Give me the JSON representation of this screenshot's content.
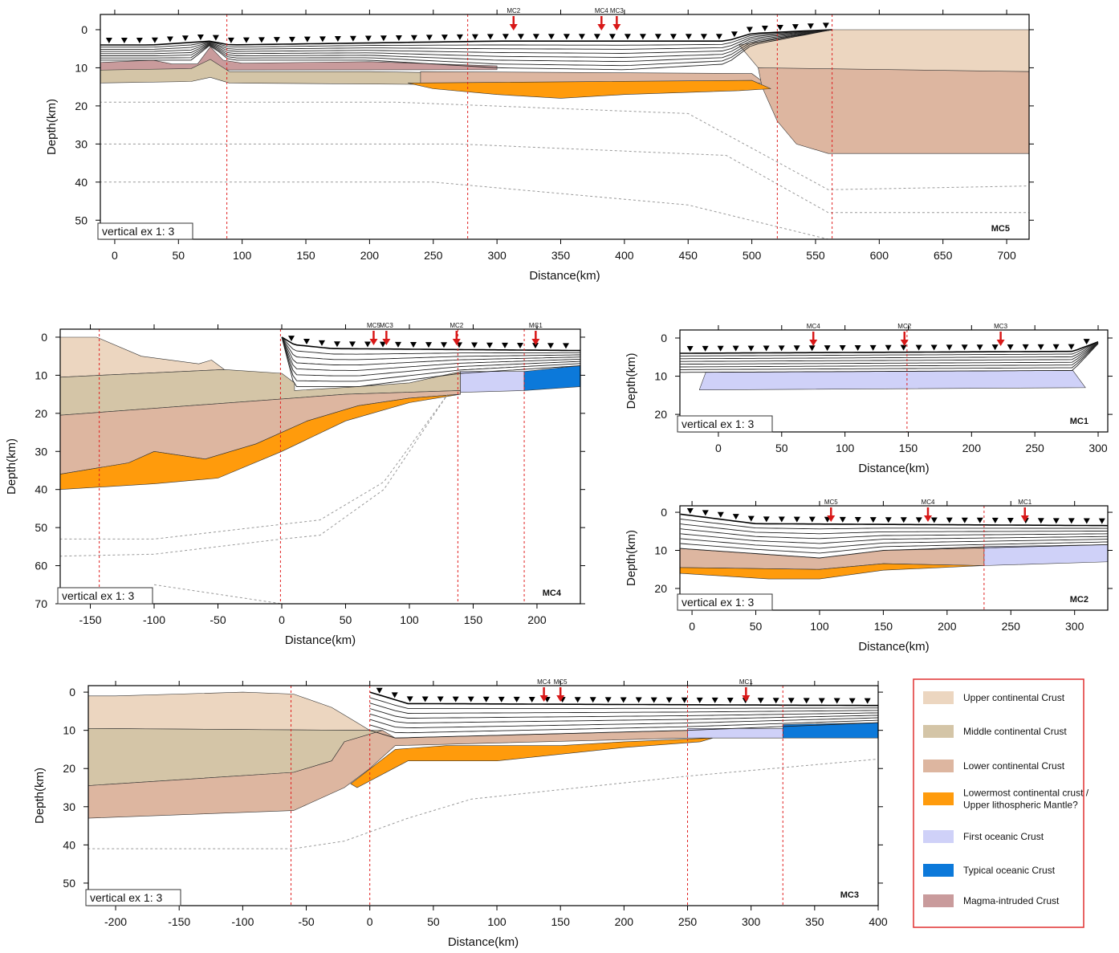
{
  "chart_data": [
    {
      "type": "section",
      "name": "MC5",
      "ylabel": "Depth(km)",
      "xlabel": "Distance(km)",
      "note": "vertical ex 1: 3",
      "xlim": [
        -11.3,
        717.6
      ],
      "ylim": [
        -4,
        55
      ],
      "xticks": [
        0,
        50,
        100,
        150,
        200,
        250,
        300,
        350,
        400,
        450,
        500,
        550,
        600,
        650,
        700
      ],
      "yticks": [
        0,
        10,
        20,
        30,
        40,
        50
      ],
      "boundaries": [
        88,
        277,
        520,
        563
      ],
      "stations": [
        {
          "label": "MC2",
          "x": 313
        },
        {
          "label": "MC4",
          "x": 382
        },
        {
          "label": "MC3",
          "x": 394
        }
      ]
    },
    {
      "type": "section",
      "name": "MC4",
      "ylabel": "Depth(km)",
      "xlabel": "Distance(km)",
      "note": "vertical ex 1: 3",
      "xlim": [
        -173.6,
        234
      ],
      "ylim": [
        -2.1,
        70
      ],
      "xticks": [
        -150,
        -100,
        -50,
        0,
        50,
        100,
        150,
        200
      ],
      "yticks": [
        0,
        10,
        20,
        30,
        40,
        50,
        60,
        70
      ],
      "boundaries": [
        -143,
        -1,
        138,
        190
      ],
      "stations": [
        {
          "label": "MC5",
          "x": 72
        },
        {
          "label": "MC3",
          "x": 82
        },
        {
          "label": "MC2",
          "x": 137
        },
        {
          "label": "MC1",
          "x": 199
        }
      ]
    },
    {
      "type": "section",
      "name": "MC1",
      "ylabel": "Depth(km)",
      "xlabel": "Distance(km)",
      "note": "vertical ex 1: 3",
      "xlim": [
        -30.4,
        307.6
      ],
      "ylim": [
        -2.1,
        24.6
      ],
      "xticks": [
        0,
        50,
        100,
        150,
        200,
        250,
        300
      ],
      "yticks": [
        0,
        10,
        20
      ],
      "boundaries": [
        149
      ],
      "stations": [
        {
          "label": "MC4",
          "x": 75
        },
        {
          "label": "MC2",
          "x": 147
        },
        {
          "label": "MC3",
          "x": 223
        }
      ]
    },
    {
      "type": "section",
      "name": "MC2",
      "ylabel": "Depth(km)",
      "xlabel": "Distance(km)",
      "note": "vertical ex 1: 3",
      "xlim": [
        -9.5,
        326
      ],
      "ylim": [
        -1.7,
        25.7
      ],
      "xticks": [
        0,
        50,
        100,
        150,
        200,
        250,
        300
      ],
      "yticks": [
        0,
        10,
        20
      ],
      "boundaries": [
        229
      ],
      "stations": [
        {
          "label": "MC5",
          "x": 109
        },
        {
          "label": "MC4",
          "x": 185
        },
        {
          "label": "MC1",
          "x": 261
        }
      ]
    },
    {
      "type": "section",
      "name": "MC3",
      "ylabel": "Depth(km)",
      "xlabel": "Distance(km)",
      "note": "vertical ex 1: 3",
      "xlim": [
        -221.5,
        400
      ],
      "ylim": [
        -1.7,
        55.9
      ],
      "xticks": [
        -200,
        -150,
        -100,
        -50,
        0,
        50,
        100,
        150,
        200,
        250,
        300,
        350,
        400
      ],
      "yticks": [
        0,
        10,
        20,
        30,
        40,
        50
      ],
      "boundaries": [
        -62,
        0,
        250,
        325
      ],
      "stations": [
        {
          "label": "MC4",
          "x": 137
        },
        {
          "label": "MC5",
          "x": 150
        },
        {
          "label": "MC1",
          "x": 296
        }
      ]
    }
  ],
  "legend": [
    {
      "label": [
        "Upper continental Crust"
      ],
      "color": "#ecd6c0"
    },
    {
      "label": [
        "Middle continental Crust"
      ],
      "color": "#d4c5a7"
    },
    {
      "label": [
        "Lower continental Crust"
      ],
      "color": "#ddb6a0"
    },
    {
      "label": [
        "Lowermost continental crust /",
        "Upper lithospheric Mantle?"
      ],
      "color": "#ff9b0c"
    },
    {
      "label": [
        "First oceanic Crust"
      ],
      "color": "#cfd1f8"
    },
    {
      "label": [
        "Typical oceanic Crust"
      ],
      "color": "#0c79da"
    },
    {
      "label": [
        "Magma-intruded Crust"
      ],
      "color": "#c99b9c"
    }
  ]
}
